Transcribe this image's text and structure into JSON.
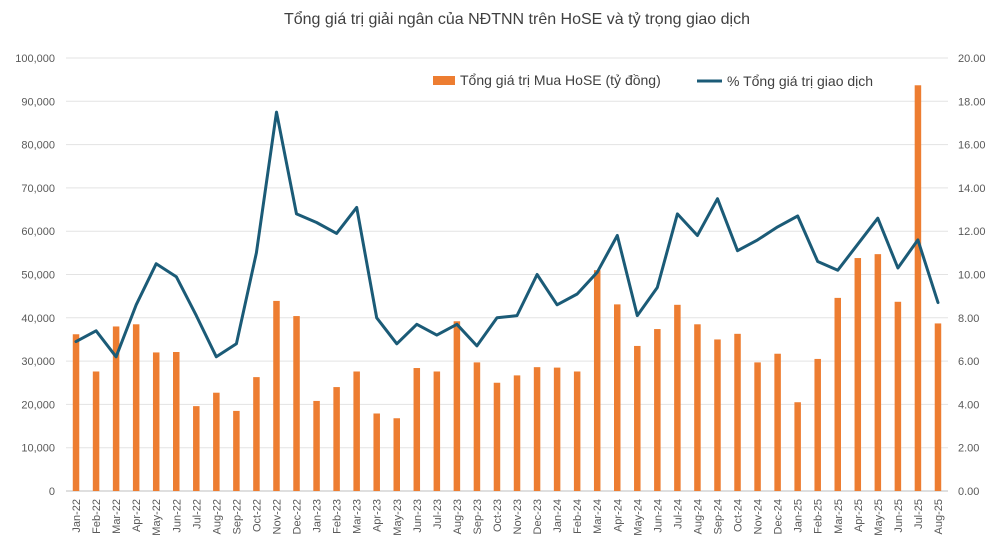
{
  "chart_data": {
    "type": "bar",
    "title": "Tổng giá trị giải ngân của NĐTNN trên HoSE và tỷ trọng giao dịch",
    "categories": [
      "Jan-22",
      "Feb-22",
      "Mar-22",
      "Apr-22",
      "May-22",
      "Jun-22",
      "Jul-22",
      "Aug-22",
      "Sep-22",
      "Oct-22",
      "Nov-22",
      "Dec-22",
      "Jan-23",
      "Feb-23",
      "Mar-23",
      "Apr-23",
      "May-23",
      "Jun-23",
      "Jul-23",
      "Aug-23",
      "Sep-23",
      "Oct-23",
      "Nov-23",
      "Dec-23",
      "Jan-24",
      "Feb-24",
      "Mar-24",
      "Apr-24",
      "May-24",
      "Jun-24",
      "Jul-24",
      "Aug-24",
      "Sep-24",
      "Oct-24",
      "Nov-24",
      "Dec-24",
      "Jan-25",
      "Feb-25",
      "Mar-25",
      "Apr-25",
      "May-25",
      "Jun-25",
      "Jul-25",
      "Aug-25"
    ],
    "series": [
      {
        "name": "Tổng giá trị Mua HoSE (tỷ đồng)",
        "kind": "bar",
        "axis": "left",
        "color": "#ED7D31",
        "values": [
          36200,
          27600,
          38000,
          38500,
          32000,
          32100,
          19600,
          22700,
          18500,
          26300,
          43900,
          40400,
          20800,
          24000,
          27600,
          17900,
          16800,
          28400,
          27600,
          39200,
          29700,
          25000,
          26700,
          28600,
          28500,
          27600,
          51000,
          43100,
          33500,
          37400,
          43000,
          38500,
          35000,
          36300,
          29700,
          31700,
          20500,
          30500,
          44600,
          53800,
          54700,
          43700,
          93700,
          38700
        ]
      },
      {
        "name": "% Tổng giá trị giao dịch",
        "kind": "line",
        "axis": "right",
        "color": "#1B5B77",
        "values": [
          6.9,
          7.4,
          6.2,
          8.6,
          10.5,
          9.9,
          8.1,
          6.2,
          6.8,
          11.0,
          17.5,
          12.8,
          12.4,
          11.9,
          13.1,
          8.0,
          6.8,
          7.7,
          7.2,
          7.7,
          6.7,
          8.0,
          8.1,
          10.0,
          8.6,
          9.1,
          10.1,
          11.8,
          8.1,
          9.4,
          12.8,
          11.8,
          13.5,
          11.1,
          11.6,
          12.2,
          12.7,
          10.6,
          10.2,
          11.4,
          12.6,
          10.3,
          11.6,
          8.7
        ]
      }
    ],
    "y_left": {
      "min": 0,
      "max": 100000,
      "ticks": [
        "0",
        "10,000",
        "20,000",
        "30,000",
        "40,000",
        "50,000",
        "60,000",
        "70,000",
        "80,000",
        "90,000",
        "100,000"
      ]
    },
    "y_right": {
      "min": 0,
      "max": 20,
      "ticks": [
        "0.00",
        "2.00",
        "4.00",
        "6.00",
        "8.00",
        "10.00",
        "12.00",
        "14.00",
        "16.00",
        "18.00",
        "20.00"
      ]
    },
    "grid": true,
    "legend_position": "top-right"
  }
}
